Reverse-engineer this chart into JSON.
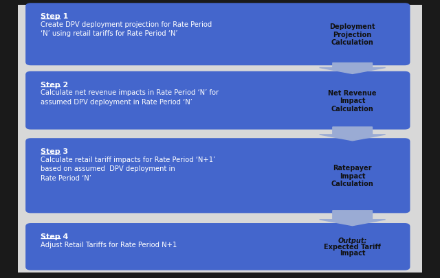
{
  "background_color": "#1a1a1a",
  "inner_bg_color": "#e8e8e8",
  "box_color": "#4466CC",
  "box_color2": "#3355BB",
  "arrow_color": "#9AABD4",
  "text_color_white": "#FFFFFF",
  "text_color_dark": "#111111",
  "steps": [
    {
      "title": "Step 1",
      "body": "Create DPV deployment projection for Rate Period\n‘N’ using retail tariffs for Rate Period ‘N’",
      "label": "Deployment\nProjection\nCalculation",
      "label_italic": false
    },
    {
      "title": "Step 2",
      "body": "Calculate net revenue impacts in Rate Period ‘N’ for\nassumed DPV deployment in Rate Period ‘N’",
      "label": "Net Revenue\nImpact\nCalculation",
      "label_italic": false
    },
    {
      "title": "Step 3",
      "body": "Calculate retail tariff impacts for Rate Period ‘N+1’\nbased on assumed  DPV deployment in\nRate Period ‘N’",
      "label": "Ratepayer\nImpact\nCalculation",
      "label_italic": false
    },
    {
      "title": "Step 4",
      "body": "Adjust Retail Tariffs for Rate Period N+1",
      "label": "Output:\nExpected Tariff\nImpact",
      "label_italic": true
    }
  ],
  "fig_width": 6.4,
  "fig_height": 4.06,
  "dpi": 100
}
